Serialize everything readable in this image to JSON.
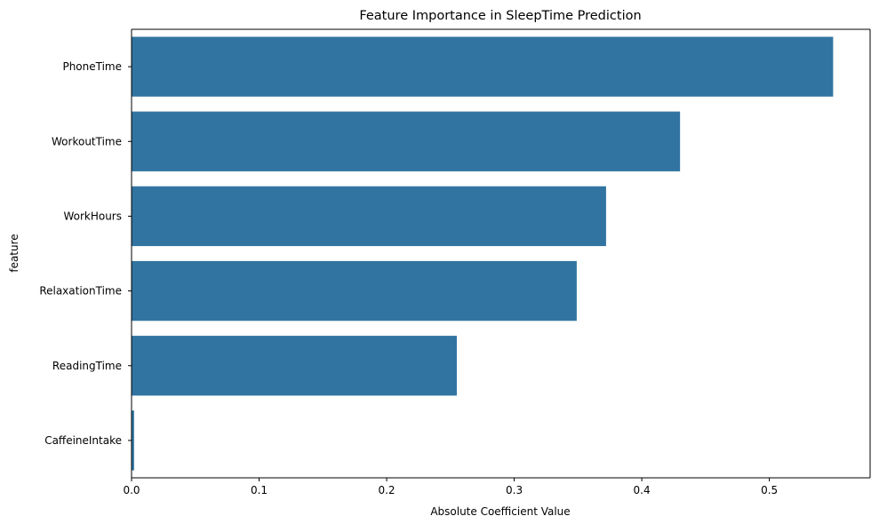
{
  "chart_data": {
    "type": "bar",
    "orientation": "horizontal",
    "title": "Feature Importance in SleepTime Prediction",
    "xlabel": "Absolute Coefficient Value",
    "ylabel": "feature",
    "categories": [
      "PhoneTime",
      "WorkoutTime",
      "WorkHours",
      "RelaxationTime",
      "ReadingTime",
      "CaffeineIntake"
    ],
    "values": [
      0.55,
      0.43,
      0.372,
      0.349,
      0.255,
      0.002
    ],
    "xlim": [
      0,
      0.579
    ],
    "xticks": [
      0,
      0.1,
      0.2,
      0.3,
      0.4,
      0.5
    ],
    "xtick_labels": [
      "0.0",
      "0.1",
      "0.2",
      "0.3",
      "0.4",
      "0.5"
    ],
    "bar_color": "#3274a1",
    "grid": false,
    "legend": "none"
  }
}
